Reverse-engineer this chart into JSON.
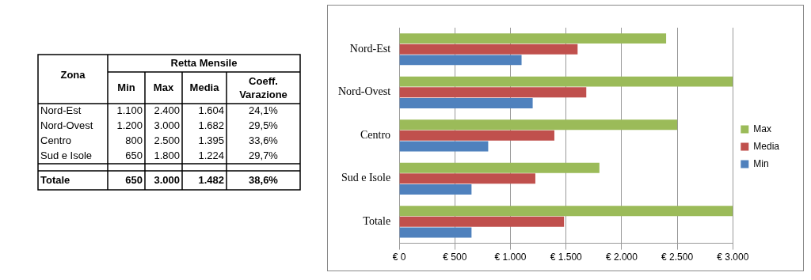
{
  "chart_data": [
    {
      "type": "other",
      "title": "Retta Mensile",
      "ylabel": "Zona",
      "categories": [
        "Min",
        "Max",
        "Media",
        "Coeff. Varazione"
      ],
      "y_categories": [
        "Nord-Est",
        "Nord-Ovest",
        "Centro",
        "Sud e Isole",
        "Totale"
      ],
      "cell_labels": [
        [
          "1.100",
          "2.400",
          "1.604",
          "24,1%"
        ],
        [
          "1.200",
          "3.000",
          "1.682",
          "29,5%"
        ],
        [
          "800",
          "2.500",
          "1.395",
          "33,6%"
        ],
        [
          "650",
          "1.800",
          "1.224",
          "29,7%"
        ],
        [
          "650",
          "3.000",
          "1.482",
          "38,6%"
        ]
      ]
    },
    {
      "type": "bar",
      "orientation": "horizontal",
      "categories": [
        "Nord-Est",
        "Nord-Ovest",
        "Centro",
        "Sud e Isole",
        "Totale"
      ],
      "series": [
        {
          "name": "Max",
          "color": "#9bbb59",
          "values": [
            2400,
            3000,
            2500,
            1800,
            3000
          ]
        },
        {
          "name": "Media",
          "color": "#c0504d",
          "values": [
            1604,
            1682,
            1395,
            1224,
            1482
          ]
        },
        {
          "name": "Min",
          "color": "#4f81bd",
          "values": [
            1100,
            1200,
            800,
            650,
            650
          ]
        }
      ],
      "xlim": [
        0,
        3000
      ],
      "xticks": [
        {
          "value": 0,
          "label": "€ 0"
        },
        {
          "value": 500,
          "label": "€ 500"
        },
        {
          "value": 1000,
          "label": "€ 1.000"
        },
        {
          "value": 1500,
          "label": "€ 1.500"
        },
        {
          "value": 2000,
          "label": "€ 2.000"
        },
        {
          "value": 2500,
          "label": "€ 2.500"
        },
        {
          "value": 3000,
          "label": "€ 3.000"
        }
      ],
      "grid": "x",
      "legend": "right"
    }
  ]
}
